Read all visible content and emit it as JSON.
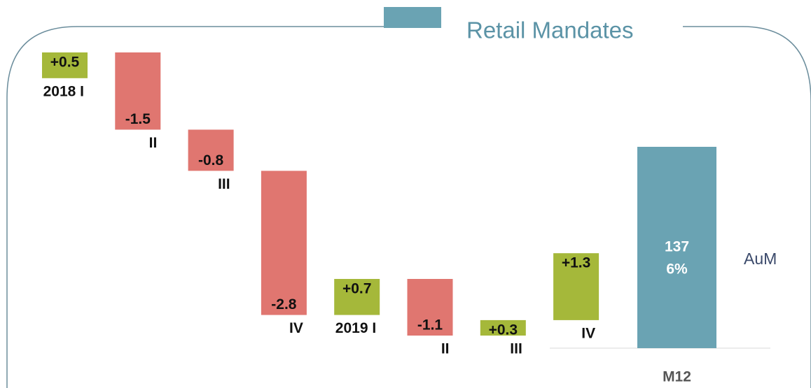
{
  "chart_data": {
    "type": "waterfall",
    "title": "Retail Mandates",
    "categories": [
      "2018 I",
      "II",
      "III",
      "IV",
      "2019 I",
      "II",
      "III",
      "IV"
    ],
    "values": [
      0.5,
      -1.5,
      -0.8,
      -2.8,
      0.7,
      -1.1,
      0.3,
      1.3
    ],
    "value_labels": [
      "+0.5",
      "-1.5",
      "-0.8",
      "-2.8",
      "+0.7",
      "-1.1",
      "+0.3",
      "+1.3"
    ],
    "increase_color": "#a5b83a",
    "decrease_color": "#e07670",
    "total": {
      "category": "M12",
      "name": "AuM",
      "value": 137,
      "growth": "6%",
      "color": "#6aa3b3"
    }
  }
}
